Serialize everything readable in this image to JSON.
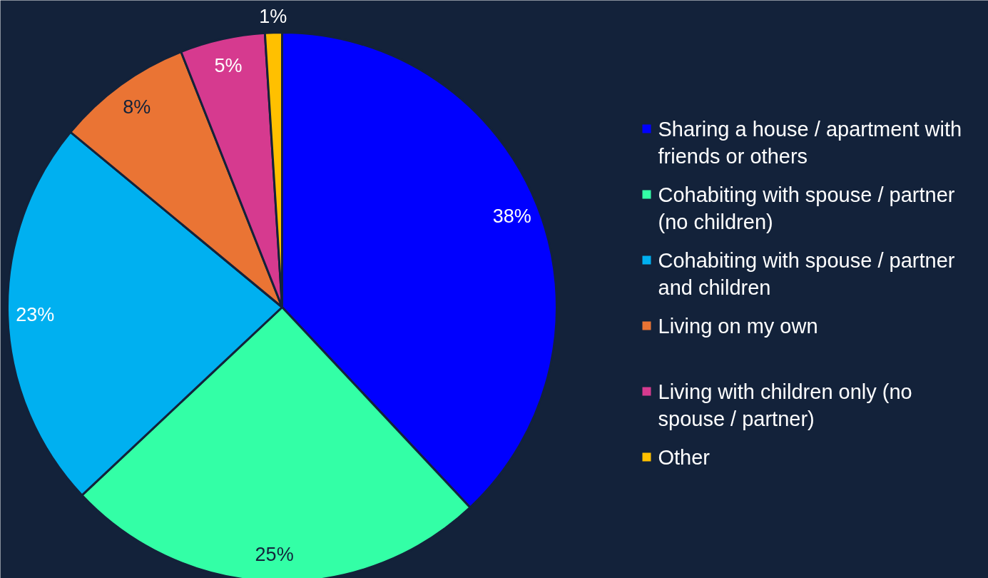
{
  "chart_data": {
    "type": "pie",
    "categories": [
      "Sharing a house / apartment with friends or others",
      "Cohabiting with spouse / partner (no children)",
      "Cohabiting with spouse / partner and children",
      "Living on my own",
      "Living with children only (no spouse / partner)",
      "Other"
    ],
    "values": [
      38,
      25,
      23,
      8,
      5,
      1
    ],
    "colors": [
      "#0000ff",
      "#33ffa6",
      "#00b0f0",
      "#ea7434",
      "#d63a8f",
      "#ffc000"
    ],
    "value_labels": [
      "38%",
      "25%",
      "23%",
      "8%",
      "5%",
      "1%"
    ],
    "legend": "right"
  }
}
